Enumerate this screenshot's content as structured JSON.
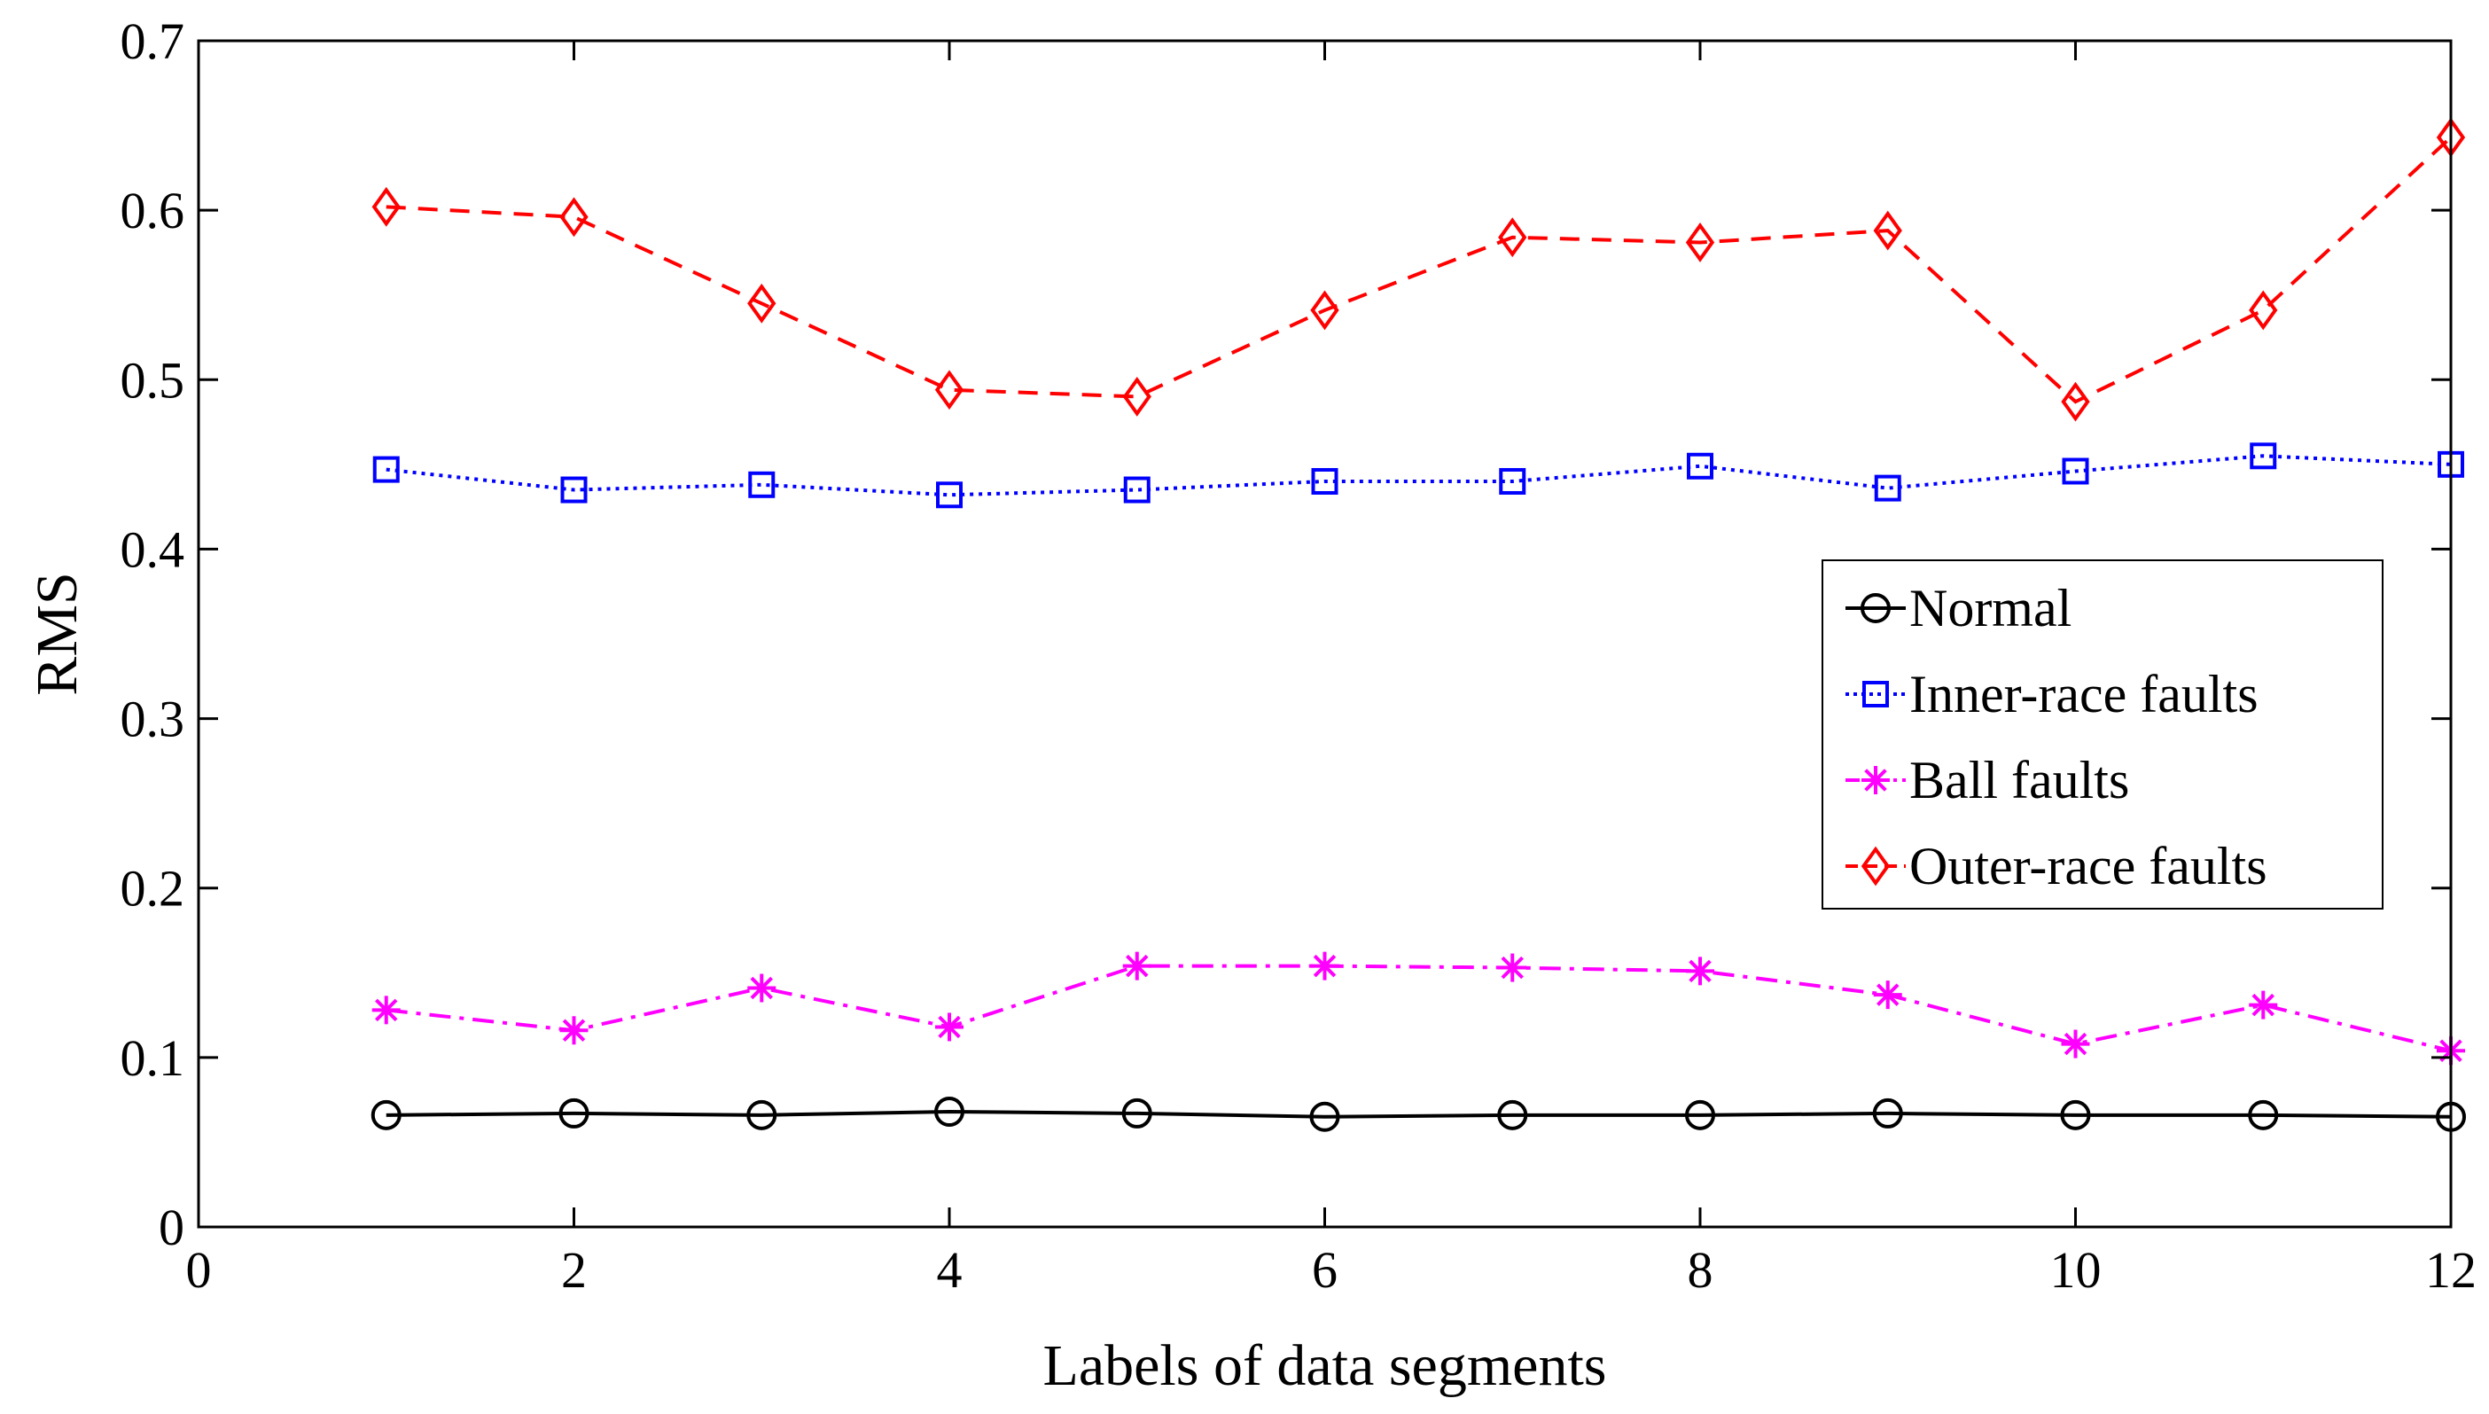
{
  "chart_data": {
    "type": "line",
    "title": "",
    "xlabel": "Labels of data segments",
    "ylabel": "RMS",
    "xlim": [
      0,
      12
    ],
    "ylim": [
      0,
      0.7
    ],
    "xticks": [
      0,
      2,
      4,
      6,
      8,
      10,
      12
    ],
    "xtick_labels": [
      "0",
      "2",
      "4",
      "6",
      "8",
      "10",
      "12"
    ],
    "yticks": [
      0,
      0.1,
      0.2,
      0.3,
      0.4,
      0.5,
      0.6,
      0.7
    ],
    "ytick_labels": [
      "0",
      "0.1",
      "0.2",
      "0.3",
      "0.4",
      "0.5",
      "0.6",
      "0.7"
    ],
    "grid": false,
    "legend_position": "right",
    "x": [
      1,
      2,
      3,
      4,
      5,
      6,
      7,
      8,
      9,
      10,
      11,
      12
    ],
    "series": [
      {
        "name": "Normal",
        "color": "#000000",
        "marker": "circle",
        "line_style": "solid",
        "values": [
          0.066,
          0.067,
          0.066,
          0.068,
          0.067,
          0.065,
          0.066,
          0.066,
          0.067,
          0.066,
          0.066,
          0.065
        ]
      },
      {
        "name": "Inner-race faults",
        "color": "#0000ff",
        "marker": "square",
        "line_style": "dotted",
        "values": [
          0.447,
          0.435,
          0.438,
          0.432,
          0.435,
          0.44,
          0.44,
          0.449,
          0.436,
          0.446,
          0.455,
          0.45
        ]
      },
      {
        "name": "Ball faults",
        "color": "#ff00ff",
        "marker": "asterisk",
        "line_style": "dashdot",
        "values": [
          0.128,
          0.116,
          0.141,
          0.118,
          0.154,
          0.154,
          0.153,
          0.151,
          0.137,
          0.108,
          0.131,
          0.104
        ]
      },
      {
        "name": "Outer-race faults",
        "color": "#ff0000",
        "marker": "diamond",
        "line_style": "dashed",
        "values": [
          0.602,
          0.596,
          0.545,
          0.494,
          0.49,
          0.541,
          0.584,
          0.581,
          0.588,
          0.487,
          0.541,
          0.643
        ]
      }
    ]
  }
}
